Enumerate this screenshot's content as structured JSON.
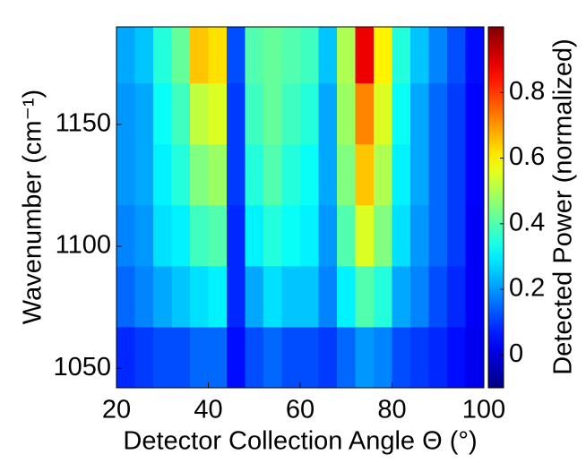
{
  "chart_data": {
    "type": "heatmap",
    "x_label": "Detector Collection Angle Θ (°)",
    "y_label": "Wavenumber (cm⁻¹)",
    "colorbar_label": "Detected Power (normalized)",
    "colormap": "jet",
    "xbins": [
      20,
      24,
      28,
      32,
      36,
      40,
      44,
      48,
      52,
      56,
      60,
      64,
      68,
      72,
      76,
      80,
      84,
      88,
      92,
      96,
      100
    ],
    "ybins": [
      1042,
      1067,
      1092,
      1117,
      1142,
      1167,
      1190
    ],
    "z": [
      [
        0.08,
        0.1,
        0.12,
        0.12,
        0.15,
        0.15,
        0.05,
        0.12,
        0.15,
        0.12,
        0.12,
        0.1,
        0.15,
        0.2,
        0.18,
        0.12,
        0.1,
        0.08,
        0.05,
        0.02
      ],
      [
        0.15,
        0.18,
        0.22,
        0.25,
        0.28,
        0.3,
        0.08,
        0.22,
        0.28,
        0.25,
        0.25,
        0.18,
        0.3,
        0.4,
        0.35,
        0.22,
        0.18,
        0.12,
        0.08,
        0.03
      ],
      [
        0.18,
        0.2,
        0.28,
        0.3,
        0.38,
        0.4,
        0.08,
        0.3,
        0.35,
        0.32,
        0.3,
        0.2,
        0.4,
        0.55,
        0.45,
        0.28,
        0.2,
        0.15,
        0.1,
        0.03
      ],
      [
        0.2,
        0.22,
        0.3,
        0.35,
        0.45,
        0.48,
        0.1,
        0.35,
        0.4,
        0.35,
        0.32,
        0.22,
        0.45,
        0.65,
        0.5,
        0.3,
        0.22,
        0.15,
        0.1,
        0.04
      ],
      [
        0.2,
        0.22,
        0.32,
        0.38,
        0.52,
        0.55,
        0.1,
        0.38,
        0.42,
        0.38,
        0.35,
        0.22,
        0.48,
        0.72,
        0.55,
        0.32,
        0.22,
        0.15,
        0.1,
        0.04
      ],
      [
        0.22,
        0.25,
        0.35,
        0.42,
        0.65,
        0.62,
        0.12,
        0.4,
        0.42,
        0.4,
        0.38,
        0.25,
        0.5,
        0.88,
        0.6,
        0.35,
        0.25,
        0.18,
        0.12,
        0.05
      ]
    ],
    "xlim": [
      20,
      100
    ],
    "ylim": [
      1042,
      1190
    ],
    "xticks": [
      20,
      40,
      60,
      80,
      100
    ],
    "yticks": [
      1050,
      1100,
      1150
    ],
    "clim": [
      -0.1,
      1
    ],
    "cticks": [
      0,
      0.2,
      0.4,
      0.6,
      0.8
    ]
  }
}
